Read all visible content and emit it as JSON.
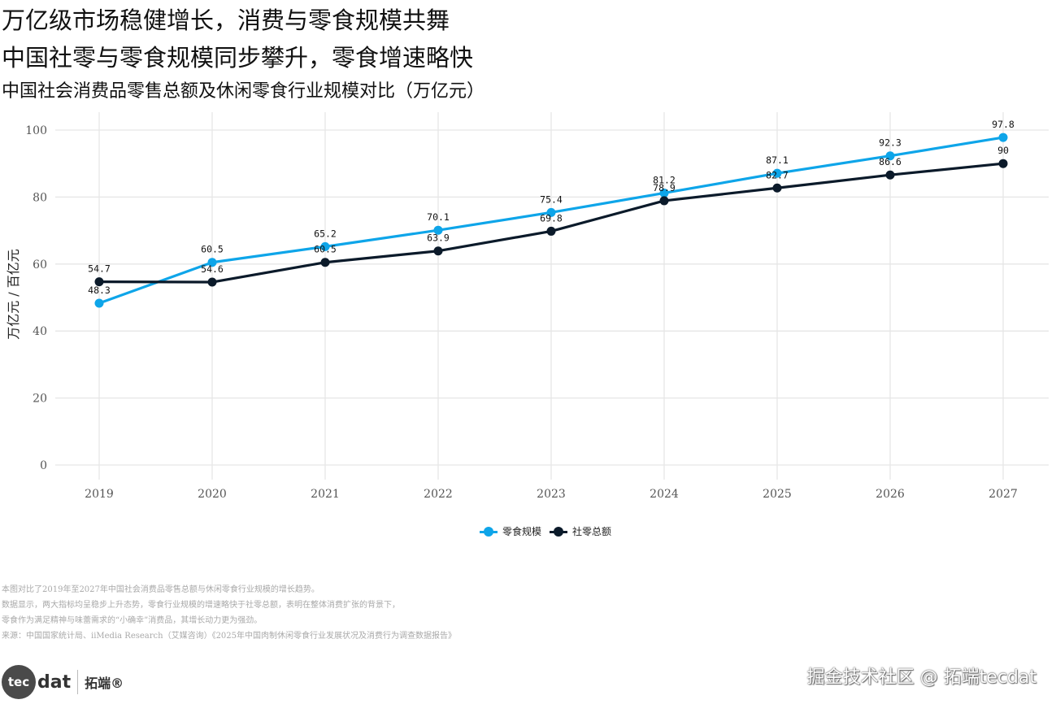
{
  "titles": {
    "main": "万亿级市场稳健增长，消费与零食规模共舞",
    "sub": "中国社零与零食规模同步攀升，零食增速略快",
    "chart_title": "中国社会消费品零售总额及休闲零食行业规模对比（万亿元）"
  },
  "colors": {
    "snack": "#0ea5e9",
    "retail": "#0b1a2a",
    "grid": "#e6e6e6",
    "axis_text": "#555555"
  },
  "chart_data": {
    "type": "line",
    "title": "中国社会消费品零售总额及休闲零食行业规模对比（万亿元）",
    "xlabel": "",
    "ylabel": "万亿元 / 百亿元",
    "x": [
      "2019",
      "2020",
      "2021",
      "2022",
      "2023",
      "2024",
      "2025",
      "2026",
      "2027"
    ],
    "ylim": [
      0,
      100
    ],
    "yticks": [
      0,
      20,
      40,
      60,
      80,
      100
    ],
    "grid": true,
    "legend_position": "bottom",
    "series": [
      {
        "name": "零食规模",
        "values": [
          48.3,
          60.5,
          65.2,
          70.1,
          75.4,
          81.2,
          87.1,
          92.3,
          97.8
        ],
        "labels": [
          "48.3",
          "60.5",
          "65.2",
          "70.1",
          "75.4",
          "81.2",
          "87.1",
          "92.3",
          "97.8"
        ]
      },
      {
        "name": "社零总额",
        "values": [
          54.7,
          54.6,
          60.5,
          63.9,
          69.8,
          78.9,
          82.7,
          86.6,
          90.0
        ],
        "labels": [
          "54.7",
          "54.6",
          "60.5",
          "63.9",
          "69.8",
          "78.9",
          "82.7",
          "86.6",
          "90"
        ]
      }
    ]
  },
  "legend": {
    "items": [
      "零食规模",
      "社零总额"
    ]
  },
  "notes": [
    "本图对比了2019年至2027年中国社会消费品零售总额与休闲零食行业规模的增长趋势。",
    "数据显示，两大指标均呈稳步上升态势，零食行业规模的增速略快于社零总额，表明在整体消费扩张的背景下，",
    "零食作为满足精神与味蕾需求的“小确幸”消费品，其增长动力更为强劲。",
    "来源：中国国家统计局、iiMedia Research（艾媒咨询）《2025年中国肉制休闲零食行业发展状况及消费行为调查数据报告》"
  ],
  "logo": {
    "circle_text": "tec",
    "word_text": "dat",
    "cn_text": "拓端®"
  },
  "watermark": "掘金技术社区 @ 拓端tecdat"
}
